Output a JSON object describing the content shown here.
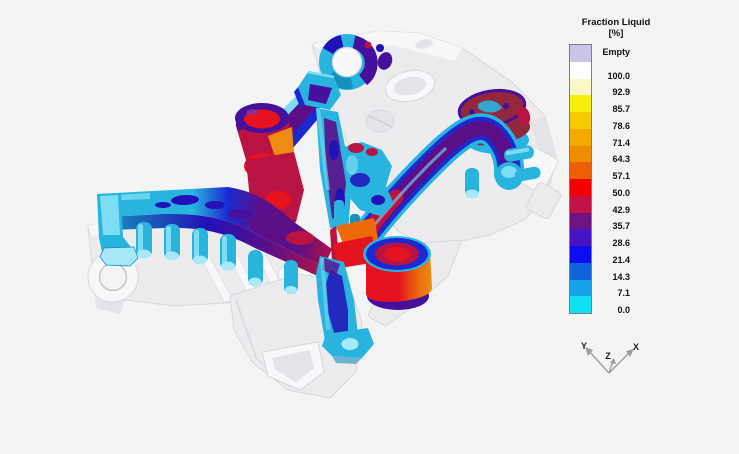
{
  "window": {
    "background_color": "#f4f4f4"
  },
  "legend": {
    "title": "Fraction Liquid",
    "unit": "[%]",
    "entries": [
      {
        "label": "Empty",
        "color": "#cbc5ea"
      },
      {
        "label": "100.0",
        "color": "#ffffff"
      },
      {
        "label": "92.9",
        "color": "#f9f9c8"
      },
      {
        "label": "85.7",
        "color": "#f7ef0b"
      },
      {
        "label": "78.6",
        "color": "#f5ca00"
      },
      {
        "label": "71.4",
        "color": "#f2a900"
      },
      {
        "label": "64.3",
        "color": "#ef8d00"
      },
      {
        "label": "57.1",
        "color": "#ec5f02"
      },
      {
        "label": "50.0",
        "color": "#f20000"
      },
      {
        "label": "42.9",
        "color": "#c21247"
      },
      {
        "label": "35.7",
        "color": "#701284"
      },
      {
        "label": "28.6",
        "color": "#4512c4"
      },
      {
        "label": "21.4",
        "color": "#0d0cf0"
      },
      {
        "label": "14.3",
        "color": "#0f64dc"
      },
      {
        "label": "7.1",
        "color": "#13a3e6"
      },
      {
        "label": "0.0",
        "color": "#10e0f2"
      }
    ]
  },
  "axis_triad": {
    "x_label": "X",
    "y_label": "Y",
    "z_label": "Z"
  },
  "model": {
    "palette": {
      "bg": "#f4f4f4",
      "ghost": "#ececef",
      "ghost_hi": "#f8f8fa",
      "ghost_mid": "#e4e4e8",
      "ghost_deep": "#d6d6db",
      "ghost_line": "#d9d9dd",
      "cyan": "#29b4e0",
      "cyan_light": "#7edcf4",
      "cyan_pale": "#a8e8f8",
      "cyan_deep": "#1590ba",
      "blue": "#1a2ad0",
      "indigo": "#2210b8",
      "violet": "#45109c",
      "purple": "#5a0f88",
      "crimson": "#b81343",
      "red": "#e51220",
      "orange": "#ee8b13",
      "orange_deep": "#ec6b08",
      "maroon": "#93273d"
    }
  }
}
